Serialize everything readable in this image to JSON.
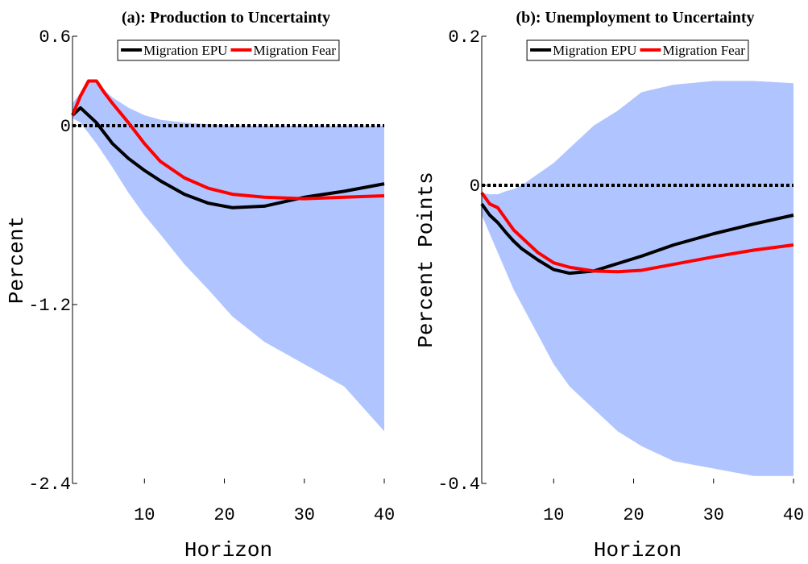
{
  "chart_data": [
    {
      "type": "line",
      "title": "(a): Production to Uncertainty",
      "xlabel": "Horizon",
      "ylabel": "Percent",
      "x": [
        1,
        2,
        3,
        4,
        5,
        6,
        8,
        10,
        12,
        15,
        18,
        21,
        25,
        30,
        35,
        40
      ],
      "series": [
        {
          "name": "Migration EPU",
          "color": "#000000",
          "values": [
            0.07,
            0.12,
            0.07,
            0.02,
            -0.05,
            -0.12,
            -0.22,
            -0.3,
            -0.37,
            -0.46,
            -0.52,
            -0.55,
            -0.54,
            -0.48,
            -0.44,
            -0.39
          ]
        },
        {
          "name": "Migration Fear",
          "color": "#ff0000",
          "values": [
            0.07,
            0.2,
            0.3,
            0.3,
            0.22,
            0.15,
            0.02,
            -0.12,
            -0.24,
            -0.35,
            -0.42,
            -0.46,
            -0.48,
            -0.49,
            -0.48,
            -0.47
          ]
        }
      ],
      "band_upper": [
        0.15,
        0.22,
        0.3,
        0.3,
        0.24,
        0.19,
        0.12,
        0.07,
        0.04,
        0.02,
        0.01,
        0,
        0,
        0,
        0,
        0
      ],
      "band_lower": [
        0.05,
        0.02,
        -0.05,
        -0.12,
        -0.2,
        -0.28,
        -0.45,
        -0.6,
        -0.73,
        -0.93,
        -1.1,
        -1.28,
        -1.45,
        -1.6,
        -1.75,
        -2.05
      ],
      "band_color": "#b0c4ff",
      "hline": 0,
      "xlim": [
        1,
        40
      ],
      "xticks": [
        10,
        20,
        30,
        40
      ],
      "ylim": [
        -2.4,
        0.6
      ],
      "yticks": [
        0.6,
        0,
        -1.2,
        -2.4
      ],
      "legend": "upper center"
    },
    {
      "type": "line",
      "title": "(b): Unemployment to Uncertainty",
      "xlabel": "Horizon",
      "ylabel": "Percent Points",
      "x": [
        1,
        2,
        3,
        4,
        5,
        6,
        8,
        10,
        12,
        15,
        18,
        21,
        25,
        30,
        35,
        40
      ],
      "series": [
        {
          "name": "Migration EPU",
          "color": "#000000",
          "values": [
            -0.025,
            -0.04,
            -0.05,
            -0.063,
            -0.075,
            -0.085,
            -0.1,
            -0.113,
            -0.118,
            -0.115,
            -0.105,
            -0.095,
            -0.08,
            -0.065,
            -0.052,
            -0.04
          ]
        },
        {
          "name": "Migration Fear",
          "color": "#ff0000",
          "values": [
            -0.01,
            -0.025,
            -0.03,
            -0.045,
            -0.06,
            -0.07,
            -0.09,
            -0.104,
            -0.11,
            -0.115,
            -0.116,
            -0.114,
            -0.106,
            -0.096,
            -0.087,
            -0.08
          ]
        }
      ],
      "band_upper": [
        -0.01,
        -0.012,
        -0.012,
        -0.008,
        -0.005,
        0,
        0.015,
        0.03,
        0.05,
        0.08,
        0.1,
        0.125,
        0.135,
        0.14,
        0.14,
        0.137
      ],
      "band_lower": [
        -0.04,
        -0.065,
        -0.09,
        -0.115,
        -0.14,
        -0.16,
        -0.2,
        -0.24,
        -0.27,
        -0.3,
        -0.33,
        -0.35,
        -0.37,
        -0.38,
        -0.39,
        -0.39
      ],
      "band_color": "#b0c4ff",
      "hline": 0,
      "xlim": [
        1,
        40
      ],
      "xticks": [
        10,
        20,
        30,
        40
      ],
      "ylim": [
        -0.4,
        0.2
      ],
      "yticks": [
        0.2,
        0,
        -0.4
      ],
      "legend": "upper center"
    }
  ]
}
